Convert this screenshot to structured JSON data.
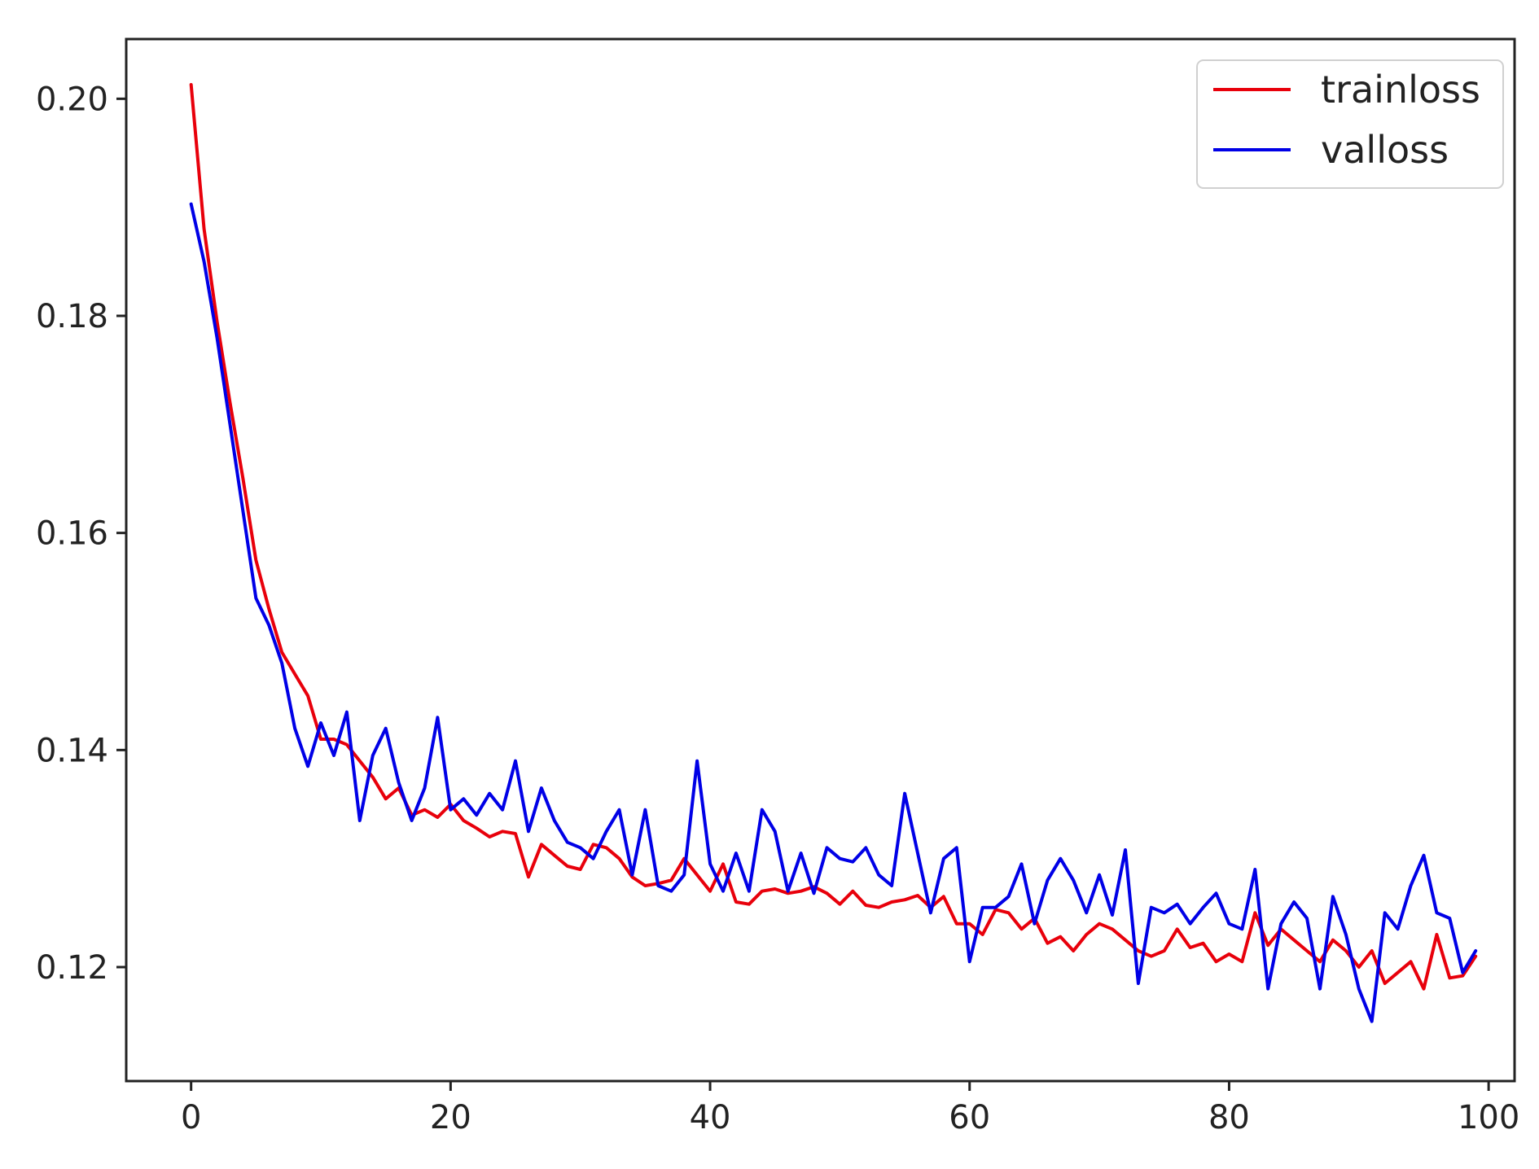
{
  "chart_data": {
    "type": "line",
    "title": "",
    "xlabel": "",
    "ylabel": "",
    "xlim": [
      -5,
      102
    ],
    "ylim": [
      0.1095,
      0.2055
    ],
    "xticks": [
      0,
      20,
      40,
      60,
      80,
      100
    ],
    "xtick_labels": [
      "0",
      "20",
      "40",
      "60",
      "80",
      "100"
    ],
    "yticks": [
      0.12,
      0.14,
      0.16,
      0.18,
      0.2
    ],
    "ytick_labels": [
      "0.12",
      "0.14",
      "0.16",
      "0.18",
      "0.20"
    ],
    "grid": false,
    "legend": {
      "position": "top-right"
    },
    "x": [
      0,
      1,
      2,
      3,
      4,
      5,
      6,
      7,
      8,
      9,
      10,
      11,
      12,
      13,
      14,
      15,
      16,
      17,
      18,
      19,
      20,
      21,
      22,
      23,
      24,
      25,
      26,
      27,
      28,
      29,
      30,
      31,
      32,
      33,
      34,
      35,
      36,
      37,
      38,
      39,
      40,
      41,
      42,
      43,
      44,
      45,
      46,
      47,
      48,
      49,
      50,
      51,
      52,
      53,
      54,
      55,
      56,
      57,
      58,
      59,
      60,
      61,
      62,
      63,
      64,
      65,
      66,
      67,
      68,
      69,
      70,
      71,
      72,
      73,
      74,
      75,
      76,
      77,
      78,
      79,
      80,
      81,
      82,
      83,
      84,
      85,
      86,
      87,
      88,
      89,
      90,
      91,
      92,
      93,
      94,
      95,
      96,
      97,
      98,
      99
    ],
    "series": [
      {
        "name": "trainloss",
        "color": "#e8000b",
        "values": [
          0.2013,
          0.188,
          0.1795,
          0.172,
          0.165,
          0.1575,
          0.153,
          0.149,
          0.147,
          0.145,
          0.141,
          0.141,
          0.1405,
          0.139,
          0.1375,
          0.1355,
          0.1365,
          0.134,
          0.1345,
          0.1338,
          0.135,
          0.1335,
          0.1328,
          0.132,
          0.1325,
          0.1323,
          0.1283,
          0.1313,
          0.1303,
          0.1293,
          0.129,
          0.1313,
          0.131,
          0.13,
          0.1283,
          0.1275,
          0.1277,
          0.128,
          0.13,
          0.1285,
          0.127,
          0.1295,
          0.126,
          0.1258,
          0.127,
          0.1272,
          0.1268,
          0.127,
          0.1274,
          0.1268,
          0.1258,
          0.127,
          0.1257,
          0.1255,
          0.126,
          0.1262,
          0.1266,
          0.1255,
          0.1265,
          0.124,
          0.124,
          0.123,
          0.1253,
          0.125,
          0.1235,
          0.1245,
          0.1222,
          0.1228,
          0.1215,
          0.123,
          0.124,
          0.1235,
          0.1225,
          0.1215,
          0.121,
          0.1215,
          0.1235,
          0.1218,
          0.1222,
          0.1205,
          0.1212,
          0.1205,
          0.125,
          0.122,
          0.1235,
          0.1225,
          0.1215,
          0.1205,
          0.1225,
          0.1215,
          0.12,
          0.1215,
          0.1185,
          0.1195,
          0.1205,
          0.118,
          0.123,
          0.119,
          0.1192,
          0.121
        ]
      },
      {
        "name": "valloss",
        "color": "#0000e6",
        "values": [
          0.1903,
          0.185,
          0.178,
          0.17,
          0.162,
          0.154,
          0.1515,
          0.148,
          0.142,
          0.1385,
          0.1425,
          0.1395,
          0.1435,
          0.1335,
          0.1395,
          0.142,
          0.137,
          0.1335,
          0.1365,
          0.143,
          0.1345,
          0.1355,
          0.134,
          0.136,
          0.1345,
          0.139,
          0.1325,
          0.1365,
          0.1335,
          0.1315,
          0.131,
          0.13,
          0.1325,
          0.1345,
          0.1285,
          0.1345,
          0.1275,
          0.127,
          0.1285,
          0.139,
          0.1295,
          0.127,
          0.1305,
          0.127,
          0.1345,
          0.1325,
          0.127,
          0.1305,
          0.1268,
          0.131,
          0.13,
          0.1297,
          0.131,
          0.1285,
          0.1275,
          0.136,
          0.1305,
          0.125,
          0.13,
          0.131,
          0.1205,
          0.1255,
          0.1255,
          0.1265,
          0.1295,
          0.124,
          0.128,
          0.13,
          0.128,
          0.125,
          0.1285,
          0.1248,
          0.1308,
          0.1185,
          0.1255,
          0.125,
          0.1258,
          0.124,
          0.1255,
          0.1268,
          0.124,
          0.1235,
          0.129,
          0.118,
          0.124,
          0.126,
          0.1245,
          0.118,
          0.1265,
          0.123,
          0.118,
          0.115,
          0.125,
          0.1235,
          0.1275,
          0.1303,
          0.125,
          0.1245,
          0.1195,
          0.1215
        ]
      }
    ]
  }
}
